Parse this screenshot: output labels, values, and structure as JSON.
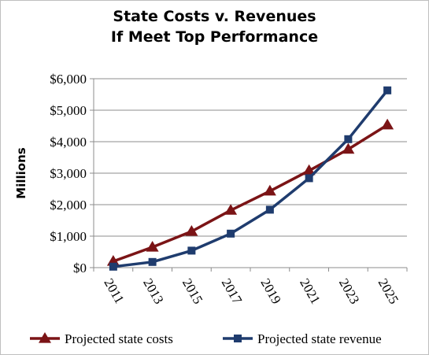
{
  "chart_data": {
    "type": "line",
    "title_line1": "State Costs v. Revenues",
    "title_line2": "If Meet Top Performance",
    "ylabel": "Millions",
    "xlabel": "",
    "categories": [
      "2011",
      "2013",
      "2015",
      "2017",
      "2019",
      "2021",
      "2023",
      "2025"
    ],
    "ylim": [
      0,
      6000
    ],
    "yticks": [
      0,
      1000,
      2000,
      3000,
      4000,
      5000,
      6000
    ],
    "ytick_labels": [
      "$0",
      "$1,000",
      "$2,000",
      "$3,000",
      "$4,000",
      "$5,000",
      "$6,000"
    ],
    "grid": "horizontal",
    "legend_position": "bottom",
    "series": [
      {
        "name": "Projected state costs",
        "values": [
          200,
          650,
          1150,
          1820,
          2430,
          3080,
          3760,
          4530
        ],
        "color": "#7B1416",
        "marker": "triangle"
      },
      {
        "name": "Projected state revenue",
        "values": [
          30,
          180,
          540,
          1080,
          1840,
          2840,
          4080,
          5630
        ],
        "color": "#1F3C6E",
        "marker": "square"
      }
    ]
  }
}
